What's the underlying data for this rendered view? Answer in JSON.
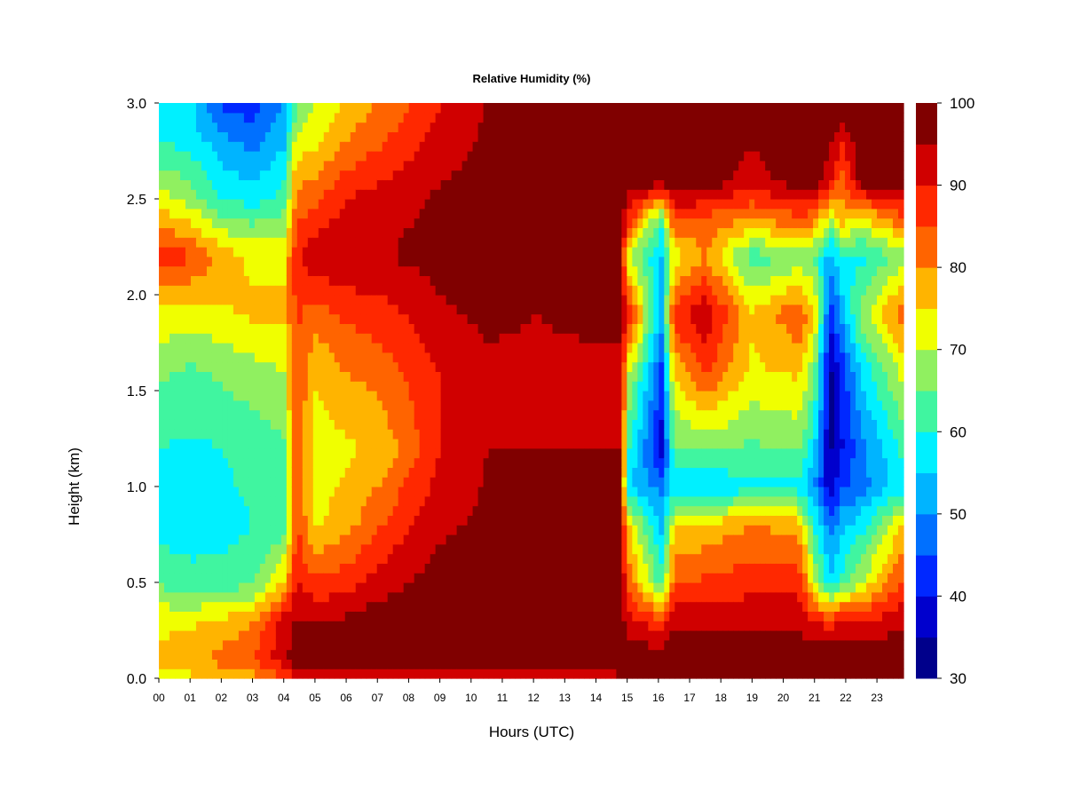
{
  "chart_data": {
    "type": "heatmap",
    "title": "Relative Humidity (%)",
    "xlabel": "Hours (UTC)",
    "ylabel": "Height (km)",
    "x_ticks": [
      "00",
      "01",
      "02",
      "03",
      "04",
      "05",
      "06",
      "07",
      "08",
      "09",
      "10",
      "11",
      "12",
      "13",
      "14",
      "15",
      "16",
      "17",
      "18",
      "19",
      "20",
      "21",
      "22",
      "23"
    ],
    "y_ticks": [
      "0.0",
      "0.5",
      "1.0",
      "1.5",
      "2.0",
      "2.5",
      "3.0"
    ],
    "xlim": [
      0,
      23.85
    ],
    "ylim": [
      0,
      3.0
    ],
    "colorbar": {
      "levels": [
        30,
        35,
        40,
        45,
        50,
        55,
        60,
        65,
        70,
        75,
        80,
        85,
        90,
        95,
        100
      ],
      "tick_labels": [
        "30",
        "40",
        "50",
        "60",
        "70",
        "80",
        "90",
        "100"
      ],
      "colors": [
        "#00008b",
        "#0000cd",
        "#0028ff",
        "#0070ff",
        "#00b4ff",
        "#00f0ff",
        "#40f5a0",
        "#90f060",
        "#f0ff00",
        "#ffb400",
        "#ff6400",
        "#ff2800",
        "#d00000",
        "#800000"
      ]
    },
    "profiles": [
      {
        "hour": 0.0,
        "heights": [
          0,
          0.1,
          0.3,
          0.5,
          0.8,
          1.2,
          1.6,
          1.9,
          2.2,
          2.5,
          2.8,
          3.0
        ],
        "rh": [
          72,
          76,
          74,
          64,
          58,
          60,
          66,
          74,
          88,
          72,
          60,
          58
        ]
      },
      {
        "hour": 1.0,
        "heights": [
          0,
          0.1,
          0.3,
          0.5,
          0.8,
          1.2,
          1.6,
          1.9,
          2.2,
          2.5,
          2.8,
          3.0
        ],
        "rh": [
          74,
          78,
          74,
          62,
          57,
          59,
          64,
          72,
          86,
          68,
          58,
          56
        ]
      },
      {
        "hour": 2.0,
        "heights": [
          0,
          0.1,
          0.3,
          0.5,
          0.8,
          1.2,
          1.6,
          1.9,
          2.2,
          2.5,
          2.8,
          3.0
        ],
        "rh": [
          76,
          82,
          76,
          62,
          58,
          60,
          66,
          74,
          78,
          60,
          52,
          44
        ]
      },
      {
        "hour": 3.0,
        "heights": [
          0,
          0.1,
          0.3,
          0.5,
          0.8,
          1.2,
          1.6,
          1.9,
          2.2,
          2.5,
          2.8,
          3.0
        ],
        "rh": [
          78,
          84,
          80,
          64,
          60,
          62,
          68,
          76,
          74,
          58,
          48,
          42
        ]
      },
      {
        "hour": 4.0,
        "heights": [
          0,
          0.1,
          0.3,
          0.5,
          0.8,
          1.2,
          1.6,
          1.9,
          2.2,
          2.5,
          2.8,
          3.0
        ],
        "rh": [
          84,
          94,
          92,
          76,
          62,
          64,
          70,
          76,
          74,
          62,
          54,
          50
        ]
      },
      {
        "hour": 4.4,
        "heights": [
          0,
          0.1,
          0.3,
          0.5,
          0.8,
          1.2,
          1.6,
          1.9,
          2.2,
          2.5,
          2.8,
          3.0
        ],
        "rh": [
          90,
          98,
          96,
          90,
          86,
          84,
          86,
          86,
          88,
          82,
          72,
          64
        ]
      },
      {
        "hour": 5.0,
        "heights": [
          0,
          0.1,
          0.3,
          0.5,
          0.8,
          1.2,
          1.6,
          1.9,
          2.2,
          2.5,
          2.8,
          3.0
        ],
        "rh": [
          90,
          97,
          95,
          86,
          74,
          72,
          76,
          82,
          94,
          84,
          74,
          70
        ]
      },
      {
        "hour": 6.0,
        "heights": [
          0,
          0.1,
          0.3,
          0.5,
          0.8,
          1.2,
          1.6,
          1.9,
          2.2,
          2.5,
          2.8,
          3.0
        ],
        "rh": [
          92,
          98,
          96,
          88,
          78,
          74,
          80,
          86,
          95,
          90,
          80,
          76
        ]
      },
      {
        "hour": 7.0,
        "heights": [
          0,
          0.1,
          0.3,
          0.5,
          0.8,
          1.2,
          1.6,
          1.9,
          2.2,
          2.5,
          2.8,
          3.0
        ],
        "rh": [
          92,
          99,
          98,
          92,
          84,
          76,
          82,
          88,
          94,
          92,
          84,
          80
        ]
      },
      {
        "hour": 8.0,
        "heights": [
          0,
          0.1,
          0.3,
          0.5,
          0.8,
          1.2,
          1.6,
          1.9,
          2.2,
          2.5,
          2.8,
          3.0
        ],
        "rh": [
          92,
          99,
          99,
          95,
          90,
          82,
          86,
          90,
          96,
          94,
          88,
          84
        ]
      },
      {
        "hour": 9.0,
        "heights": [
          0,
          0.1,
          0.3,
          0.5,
          0.8,
          1.2,
          1.6,
          1.9,
          2.2,
          2.5,
          2.8,
          3.0
        ],
        "rh": [
          90,
          99,
          99,
          97,
          94,
          90,
          90,
          94,
          97,
          96,
          92,
          90
        ]
      },
      {
        "hour": 10.5,
        "heights": [
          0,
          0.1,
          0.3,
          0.5,
          0.8,
          1.2,
          1.6,
          1.9,
          2.2,
          2.5,
          2.8,
          3.0
        ],
        "rh": [
          88,
          99,
          99,
          98,
          96,
          95,
          94,
          96,
          98,
          98,
          96,
          95
        ]
      },
      {
        "hour": 12.0,
        "heights": [
          0,
          0.1,
          0.3,
          0.5,
          0.8,
          1.2,
          1.6,
          1.9,
          2.2,
          2.5,
          2.8,
          3.0
        ],
        "rh": [
          88,
          99,
          99,
          98,
          96,
          95,
          94,
          95,
          99,
          99,
          99,
          99
        ]
      },
      {
        "hour": 14.0,
        "heights": [
          0,
          0.1,
          0.3,
          0.5,
          0.8,
          1.2,
          1.6,
          1.9,
          2.2,
          2.5,
          2.8,
          3.0
        ],
        "rh": [
          90,
          99,
          99,
          98,
          96,
          95,
          94,
          96,
          99,
          99,
          99,
          99
        ]
      },
      {
        "hour": 14.8,
        "heights": [
          0,
          0.1,
          0.3,
          0.5,
          0.8,
          1.2,
          1.6,
          1.9,
          2.2,
          2.5,
          2.8,
          3.0
        ],
        "rh": [
          95,
          99,
          99,
          98,
          96,
          95,
          94,
          96,
          99,
          99,
          99,
          99
        ]
      },
      {
        "hour": 15.0,
        "heights": [
          0,
          0.1,
          0.3,
          0.5,
          0.8,
          1.0,
          1.2,
          1.6,
          1.9,
          2.2,
          2.4,
          2.6,
          3.0
        ],
        "rh": [
          99,
          99,
          92,
          84,
          76,
          55,
          62,
          72,
          92,
          70,
          90,
          99,
          99
        ]
      },
      {
        "hour": 16.1,
        "heights": [
          0,
          0.1,
          0.3,
          0.5,
          0.8,
          1.0,
          1.2,
          1.6,
          1.9,
          2.2,
          2.4,
          2.6,
          3.0
        ],
        "rh": [
          99,
          99,
          86,
          62,
          54,
          48,
          38,
          44,
          52,
          54,
          62,
          99,
          99
        ]
      },
      {
        "hour": 16.5,
        "heights": [
          0,
          0.1,
          0.3,
          0.5,
          0.8,
          1.0,
          1.2,
          1.6,
          1.9,
          2.2,
          2.4,
          2.6,
          3.0
        ],
        "rh": [
          99,
          99,
          94,
          84,
          74,
          56,
          64,
          76,
          88,
          72,
          86,
          99,
          99
        ]
      },
      {
        "hour": 17.5,
        "heights": [
          0,
          0.1,
          0.3,
          0.5,
          0.8,
          1.0,
          1.2,
          1.6,
          1.9,
          2.2,
          2.4,
          2.6,
          3.0
        ],
        "rh": [
          99,
          99,
          94,
          86,
          76,
          56,
          66,
          86,
          94,
          80,
          84,
          99,
          99
        ]
      },
      {
        "hour": 19.0,
        "heights": [
          0,
          0.1,
          0.3,
          0.5,
          0.8,
          1.0,
          1.2,
          1.6,
          1.9,
          2.2,
          2.4,
          2.6,
          3.0
        ],
        "rh": [
          99,
          99,
          94,
          88,
          80,
          58,
          64,
          74,
          76,
          62,
          80,
          92,
          99
        ]
      },
      {
        "hour": 20.5,
        "heights": [
          0,
          0.1,
          0.3,
          0.5,
          0.8,
          1.0,
          1.2,
          1.6,
          1.9,
          2.2,
          2.4,
          2.6,
          3.0
        ],
        "rh": [
          99,
          99,
          94,
          88,
          78,
          58,
          66,
          76,
          84,
          66,
          84,
          99,
          99
        ]
      },
      {
        "hour": 21.0,
        "heights": [
          0,
          0.1,
          0.3,
          0.5,
          0.8,
          1.0,
          1.2,
          1.6,
          1.9,
          2.2,
          2.4,
          2.6,
          3.0
        ],
        "rh": [
          99,
          99,
          90,
          70,
          60,
          50,
          56,
          66,
          76,
          64,
          82,
          99,
          99
        ]
      },
      {
        "hour": 21.5,
        "heights": [
          0,
          0.1,
          0.3,
          0.5,
          0.8,
          1.0,
          1.2,
          1.6,
          1.9,
          2.2,
          2.4,
          2.6,
          3.0
        ],
        "rh": [
          99,
          99,
          88,
          56,
          48,
          36,
          34,
          34,
          42,
          52,
          70,
          92,
          99
        ]
      },
      {
        "hour": 21.9,
        "heights": [
          0,
          0.1,
          0.3,
          0.5,
          0.8,
          1.0,
          1.2,
          1.6,
          1.9,
          2.2,
          2.4,
          2.6,
          3.0
        ],
        "rh": [
          99,
          99,
          92,
          62,
          54,
          44,
          40,
          42,
          52,
          60,
          78,
          82,
          99
        ]
      },
      {
        "hour": 22.5,
        "heights": [
          0,
          0.1,
          0.3,
          0.5,
          0.8,
          1.0,
          1.2,
          1.6,
          1.9,
          2.2,
          2.4,
          2.6,
          3.0
        ],
        "rh": [
          99,
          99,
          90,
          70,
          58,
          48,
          48,
          56,
          68,
          58,
          74,
          99,
          99
        ]
      },
      {
        "hour": 23.85,
        "heights": [
          0,
          0.1,
          0.3,
          0.5,
          0.8,
          1.0,
          1.2,
          1.6,
          1.9,
          2.2,
          2.4,
          2.6,
          3.0
        ],
        "rh": [
          99,
          99,
          94,
          86,
          76,
          58,
          62,
          72,
          84,
          68,
          84,
          99,
          99
        ]
      }
    ]
  }
}
